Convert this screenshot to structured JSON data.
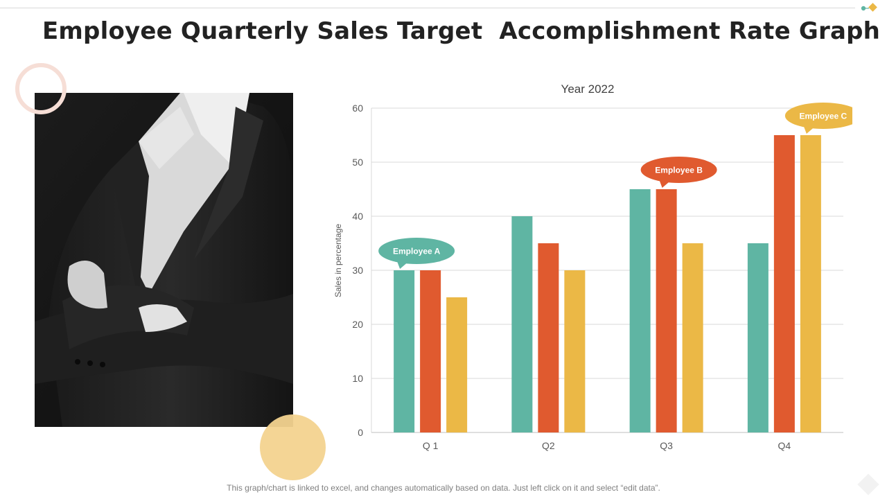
{
  "slide": {
    "title": "Employee Quarterly Sales Target  Accomplishment Rate Graph",
    "footnote": "This graph/chart is linked to excel, and changes automatically based on data. Just left click on it and select “edit data”."
  },
  "chart_data": {
    "type": "bar",
    "title": "Year 2022",
    "ylabel": "Sales in percentage",
    "xlabel": "",
    "categories": [
      "Q 1",
      "Q2",
      "Q3",
      "Q4"
    ],
    "ylim": [
      0,
      60
    ],
    "yticks": [
      0,
      10,
      20,
      30,
      40,
      50,
      60
    ],
    "grid": true,
    "series": [
      {
        "name": "Employee A",
        "color": "#5fb5a3",
        "values": [
          30,
          40,
          45,
          35
        ]
      },
      {
        "name": "Employee B",
        "color": "#e05a2f",
        "values": [
          30,
          35,
          45,
          55
        ]
      },
      {
        "name": "Employee C",
        "color": "#ebb846",
        "values": [
          25,
          30,
          35,
          55
        ]
      }
    ],
    "callouts": [
      {
        "series": 0,
        "category": 0
      },
      {
        "series": 1,
        "category": 2
      },
      {
        "series": 2,
        "category": 3
      }
    ]
  }
}
